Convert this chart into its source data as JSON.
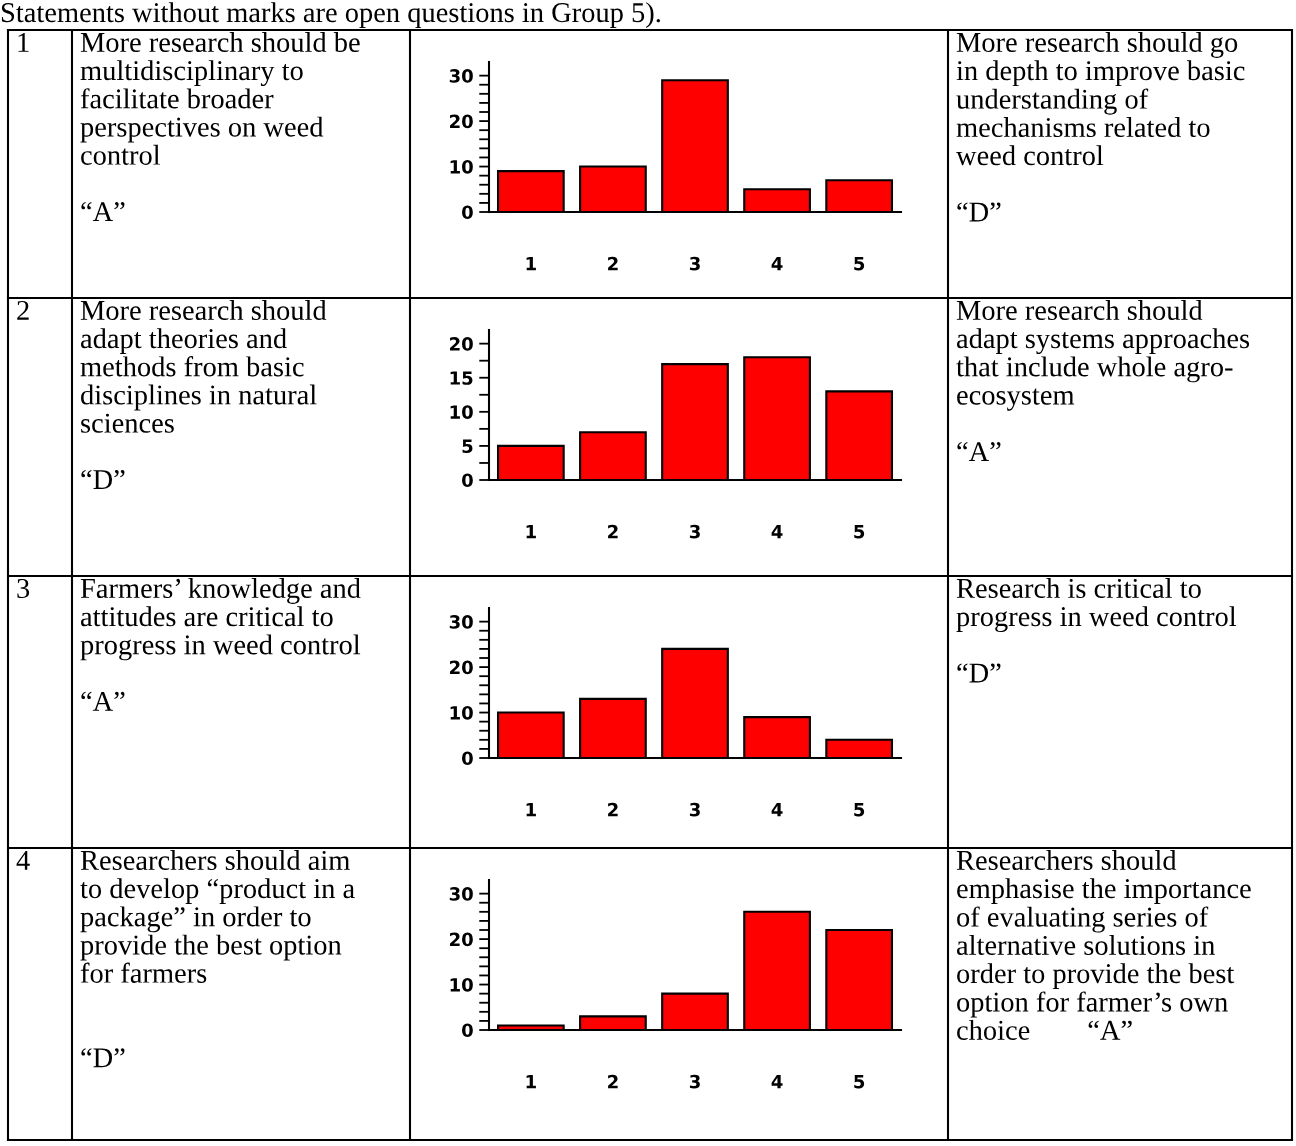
{
  "chart_data": [
    {
      "type": "bar",
      "title": "Statements without marks are open questions in Group 5).",
      "categories": [
        "1",
        "2",
        "3",
        "4",
        "5"
      ],
      "values": [
        9,
        10,
        29,
        5,
        7
      ],
      "color": "#ff0000",
      "ylim": [
        0,
        33
      ],
      "yticks": [
        0,
        {
          "value": 2,
          "label": null
        },
        {
          "value": 4,
          "label": null
        },
        {
          "value": 6,
          "label": null
        },
        {
          "value": 8,
          "label": null
        },
        10,
        {
          "value": 12,
          "label": null
        },
        {
          "value": 14,
          "label": null
        },
        {
          "value": 16,
          "label": null
        },
        {
          "value": 18,
          "label": null
        },
        20,
        {
          "value": 22,
          "label": null
        },
        {
          "value": 24,
          "label": null
        },
        {
          "value": 26,
          "label": null
        },
        {
          "value": 28,
          "label": null
        },
        30
      ],
      "annotations": [
        "1",
        "More research should be\nmultidisciplinary to\nfacilitate broader\nperspectives on weed\ncontrol\n\n“A”",
        "More research should go\nin depth to improve basic\nunderstanding of\nmechanisms related to\nweed control\n\n“D”"
      ]
    },
    {
      "type": "bar",
      "categories": [
        "1",
        "2",
        "3",
        "4",
        "5"
      ],
      "values": [
        5,
        7,
        17,
        18,
        13
      ],
      "color": "#ff0000",
      "ylim": [
        0,
        22
      ],
      "yticks": [
        0,
        {
          "value": 2.5,
          "label": null
        },
        5,
        {
          "value": 7.5,
          "label": null
        },
        10,
        {
          "value": 12.5,
          "label": null
        },
        15,
        {
          "value": 17.5,
          "label": null
        },
        20
      ],
      "annotations": [
        "2",
        "More research should\nadapt theories and\nmethods from basic\ndisciplines in natural\nsciences\n\n“D”",
        "More research should\nadapt systems approaches\nthat include whole agro-\necosystem\n\n“A”"
      ]
    },
    {
      "type": "bar",
      "categories": [
        "1",
        "2",
        "3",
        "4",
        "5"
      ],
      "values": [
        10,
        13,
        24,
        9,
        4
      ],
      "color": "#ff0000",
      "ylim": [
        0,
        33
      ],
      "yticks": [
        0,
        {
          "value": 2,
          "label": null
        },
        {
          "value": 4,
          "label": null
        },
        {
          "value": 6,
          "label": null
        },
        {
          "value": 8,
          "label": null
        },
        10,
        {
          "value": 12,
          "label": null
        },
        {
          "value": 14,
          "label": null
        },
        {
          "value": 16,
          "label": null
        },
        {
          "value": 18,
          "label": null
        },
        20,
        {
          "value": 22,
          "label": null
        },
        {
          "value": 24,
          "label": null
        },
        {
          "value": 26,
          "label": null
        },
        {
          "value": 28,
          "label": null
        },
        30
      ],
      "annotations": [
        "3",
        "Farmers’ knowledge and\nattitudes are critical to\nprogress in weed control\n\n“A”",
        "Research is critical to\nprogress in weed control\n\n“D”"
      ]
    },
    {
      "type": "bar",
      "categories": [
        "1",
        "2",
        "3",
        "4",
        "5"
      ],
      "values": [
        1,
        3,
        8,
        26,
        22
      ],
      "color": "#ff0000",
      "ylim": [
        0,
        33
      ],
      "yticks": [
        0,
        {
          "value": 2,
          "label": null
        },
        {
          "value": 4,
          "label": null
        },
        {
          "value": 6,
          "label": null
        },
        {
          "value": 8,
          "label": null
        },
        10,
        {
          "value": 12,
          "label": null
        },
        {
          "value": 14,
          "label": null
        },
        {
          "value": 16,
          "label": null
        },
        {
          "value": 18,
          "label": null
        },
        20,
        {
          "value": 22,
          "label": null
        },
        {
          "value": 24,
          "label": null
        },
        {
          "value": 26,
          "label": null
        },
        {
          "value": 28,
          "label": null
        },
        30
      ],
      "annotations": [
        "4",
        "Researchers should aim\nto develop “product in a\npackage” in order to\nprovide the best option\nfor farmers\n\n\n“D”",
        "Researchers should\nemphasise the importance\nof evaluating series of\nalternative solutions in\norder to provide the best\noption for farmer’s own\nchoice        “A”"
      ]
    }
  ]
}
